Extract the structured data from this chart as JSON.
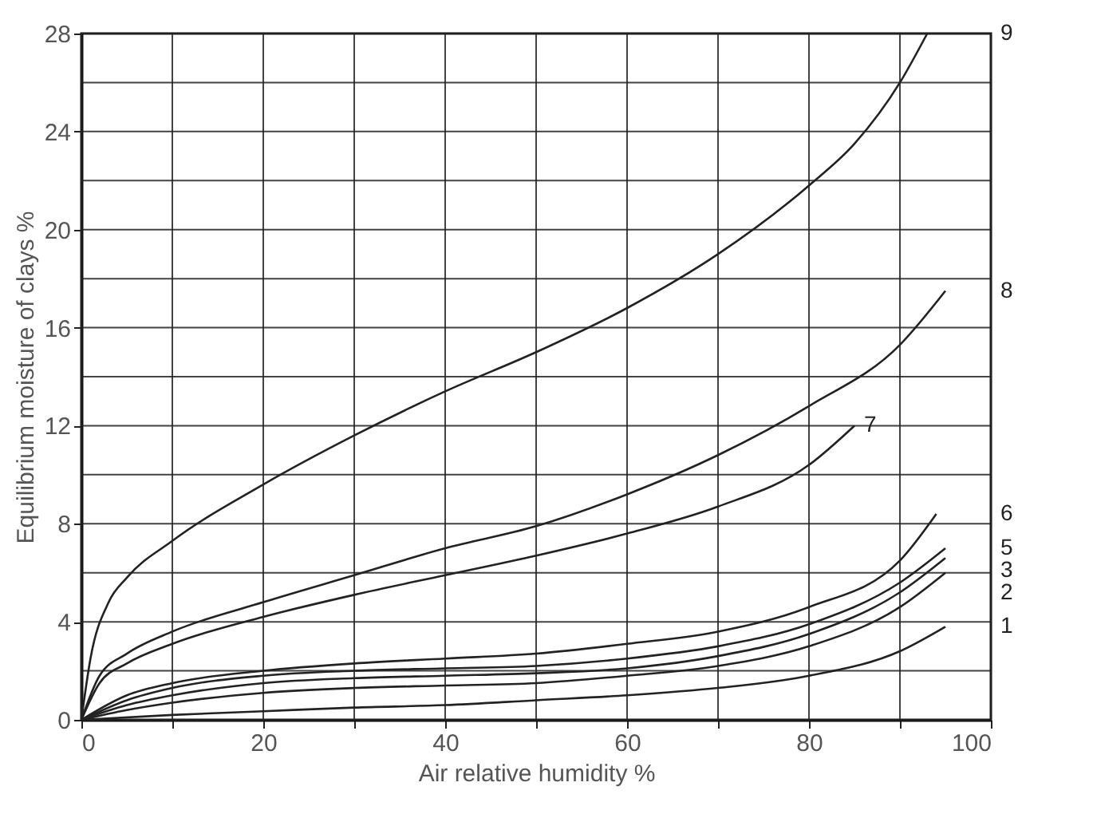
{
  "chart_data": {
    "type": "line",
    "xlabel": "Air relative humidity %",
    "ylabel": "Equilibrium moisture of clays %",
    "xlim": [
      0,
      100
    ],
    "ylim": [
      0,
      28
    ],
    "xticks": [
      0,
      {
        "value": 10,
        "label": null
      },
      20,
      {
        "value": 30,
        "label": null
      },
      40,
      {
        "value": 50,
        "label": null
      },
      60,
      {
        "value": 70,
        "label": null
      },
      80,
      {
        "value": 90,
        "label": null
      },
      100
    ],
    "yticks": [
      0,
      {
        "value": 2,
        "label": null
      },
      4,
      {
        "value": 6,
        "label": null
      },
      8,
      {
        "value": 10,
        "label": null
      },
      12,
      {
        "value": 14,
        "label": null
      },
      16,
      {
        "value": 18,
        "label": null
      },
      20,
      {
        "value": 22,
        "label": null
      },
      24,
      {
        "value": 26,
        "label": null
      },
      28
    ],
    "grid": true,
    "line_style": "solid",
    "marker": "none",
    "series": [
      {
        "name": "1",
        "color": "#222222",
        "x": [
          0,
          10,
          20,
          30,
          40,
          50,
          60,
          70,
          80,
          90,
          95
        ],
        "values": [
          0,
          0.2,
          0.35,
          0.5,
          0.6,
          0.8,
          1.0,
          1.3,
          1.8,
          2.8,
          3.8
        ]
      },
      {
        "name": "2",
        "color": "#222222",
        "x": [
          0,
          5,
          10,
          20,
          30,
          40,
          50,
          60,
          70,
          80,
          90,
          95
        ],
        "values": [
          0,
          0.4,
          0.7,
          1.1,
          1.3,
          1.4,
          1.5,
          1.8,
          2.2,
          3.0,
          4.6,
          6.0
        ]
      },
      {
        "name": "3",
        "color": "#222222",
        "x": [
          0,
          5,
          10,
          20,
          30,
          40,
          50,
          60,
          70,
          80,
          90,
          95
        ],
        "values": [
          0,
          0.6,
          1.0,
          1.5,
          1.7,
          1.8,
          1.9,
          2.1,
          2.6,
          3.5,
          5.2,
          6.6
        ]
      },
      {
        "name": "5",
        "color": "#222222",
        "x": [
          0,
          5,
          10,
          20,
          30,
          40,
          50,
          60,
          70,
          80,
          90,
          95
        ],
        "values": [
          0,
          0.8,
          1.3,
          1.8,
          2.0,
          2.1,
          2.2,
          2.5,
          3.0,
          3.9,
          5.6,
          7.0
        ]
      },
      {
        "name": "6",
        "color": "#222222",
        "x": [
          0,
          5,
          10,
          20,
          30,
          40,
          50,
          60,
          70,
          80,
          90,
          94
        ],
        "values": [
          0,
          1.0,
          1.5,
          2.0,
          2.3,
          2.5,
          2.7,
          3.1,
          3.6,
          4.6,
          6.5,
          8.4
        ]
      },
      {
        "name": "7",
        "color": "#222222",
        "x": [
          0,
          2,
          5,
          10,
          20,
          30,
          40,
          50,
          60,
          70,
          80,
          85
        ],
        "values": [
          0,
          1.5,
          2.3,
          3.1,
          4.2,
          5.1,
          5.9,
          6.7,
          7.6,
          8.7,
          10.4,
          12
        ]
      },
      {
        "name": "8",
        "color": "#222222",
        "x": [
          0,
          2,
          5,
          10,
          20,
          30,
          40,
          50,
          60,
          70,
          80,
          90,
          95
        ],
        "values": [
          0,
          1.8,
          2.7,
          3.6,
          4.8,
          5.9,
          7.0,
          7.9,
          9.2,
          10.8,
          12.8,
          15.3,
          17.5
        ]
      },
      {
        "name": "9",
        "color": "#222222",
        "x": [
          0,
          1,
          3,
          5,
          10,
          20,
          30,
          40,
          50,
          60,
          70,
          80,
          85,
          90,
          93
        ],
        "values": [
          0,
          2.5,
          4.8,
          5.8,
          7.3,
          9.6,
          11.6,
          13.4,
          15,
          16.8,
          19,
          21.8,
          23.5,
          26,
          28
        ]
      }
    ]
  }
}
